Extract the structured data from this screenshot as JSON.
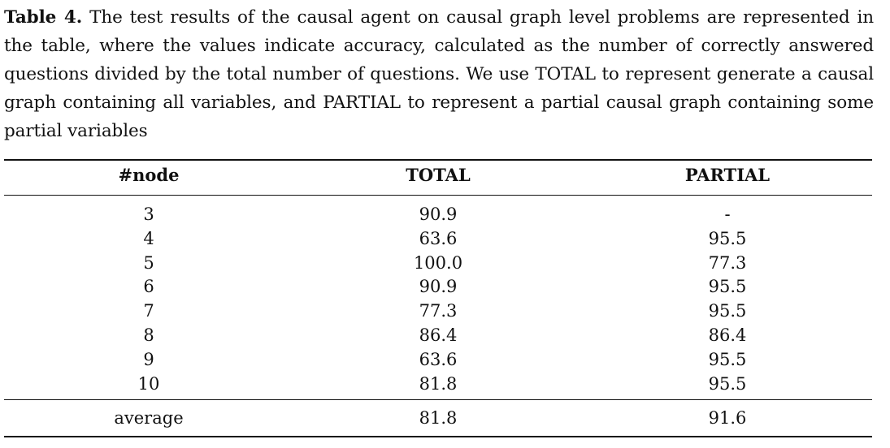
{
  "caption": {
    "label": "Table 4.",
    "text": "The test results of the causal agent on causal graph level problems are represented in the table, where the values indicate accuracy, calculated as the number of correctly answered questions divided by the total number of questions.  We use TOTAL to represent generate a causal graph containing all variables, and PARTIAL to represent a partial causal graph containing some partial variables"
  },
  "table": {
    "headers": [
      "#node",
      "TOTAL",
      "PARTIAL"
    ],
    "rows": [
      [
        "3",
        "90.9",
        "-"
      ],
      [
        "4",
        "63.6",
        "95.5"
      ],
      [
        "5",
        "100.0",
        "77.3"
      ],
      [
        "6",
        "90.9",
        "95.5"
      ],
      [
        "7",
        "77.3",
        "95.5"
      ],
      [
        "8",
        "86.4",
        "86.4"
      ],
      [
        "9",
        "63.6",
        "95.5"
      ],
      [
        "10",
        "81.8",
        "95.5"
      ]
    ],
    "footer": [
      "average",
      "81.8",
      "91.6"
    ]
  }
}
